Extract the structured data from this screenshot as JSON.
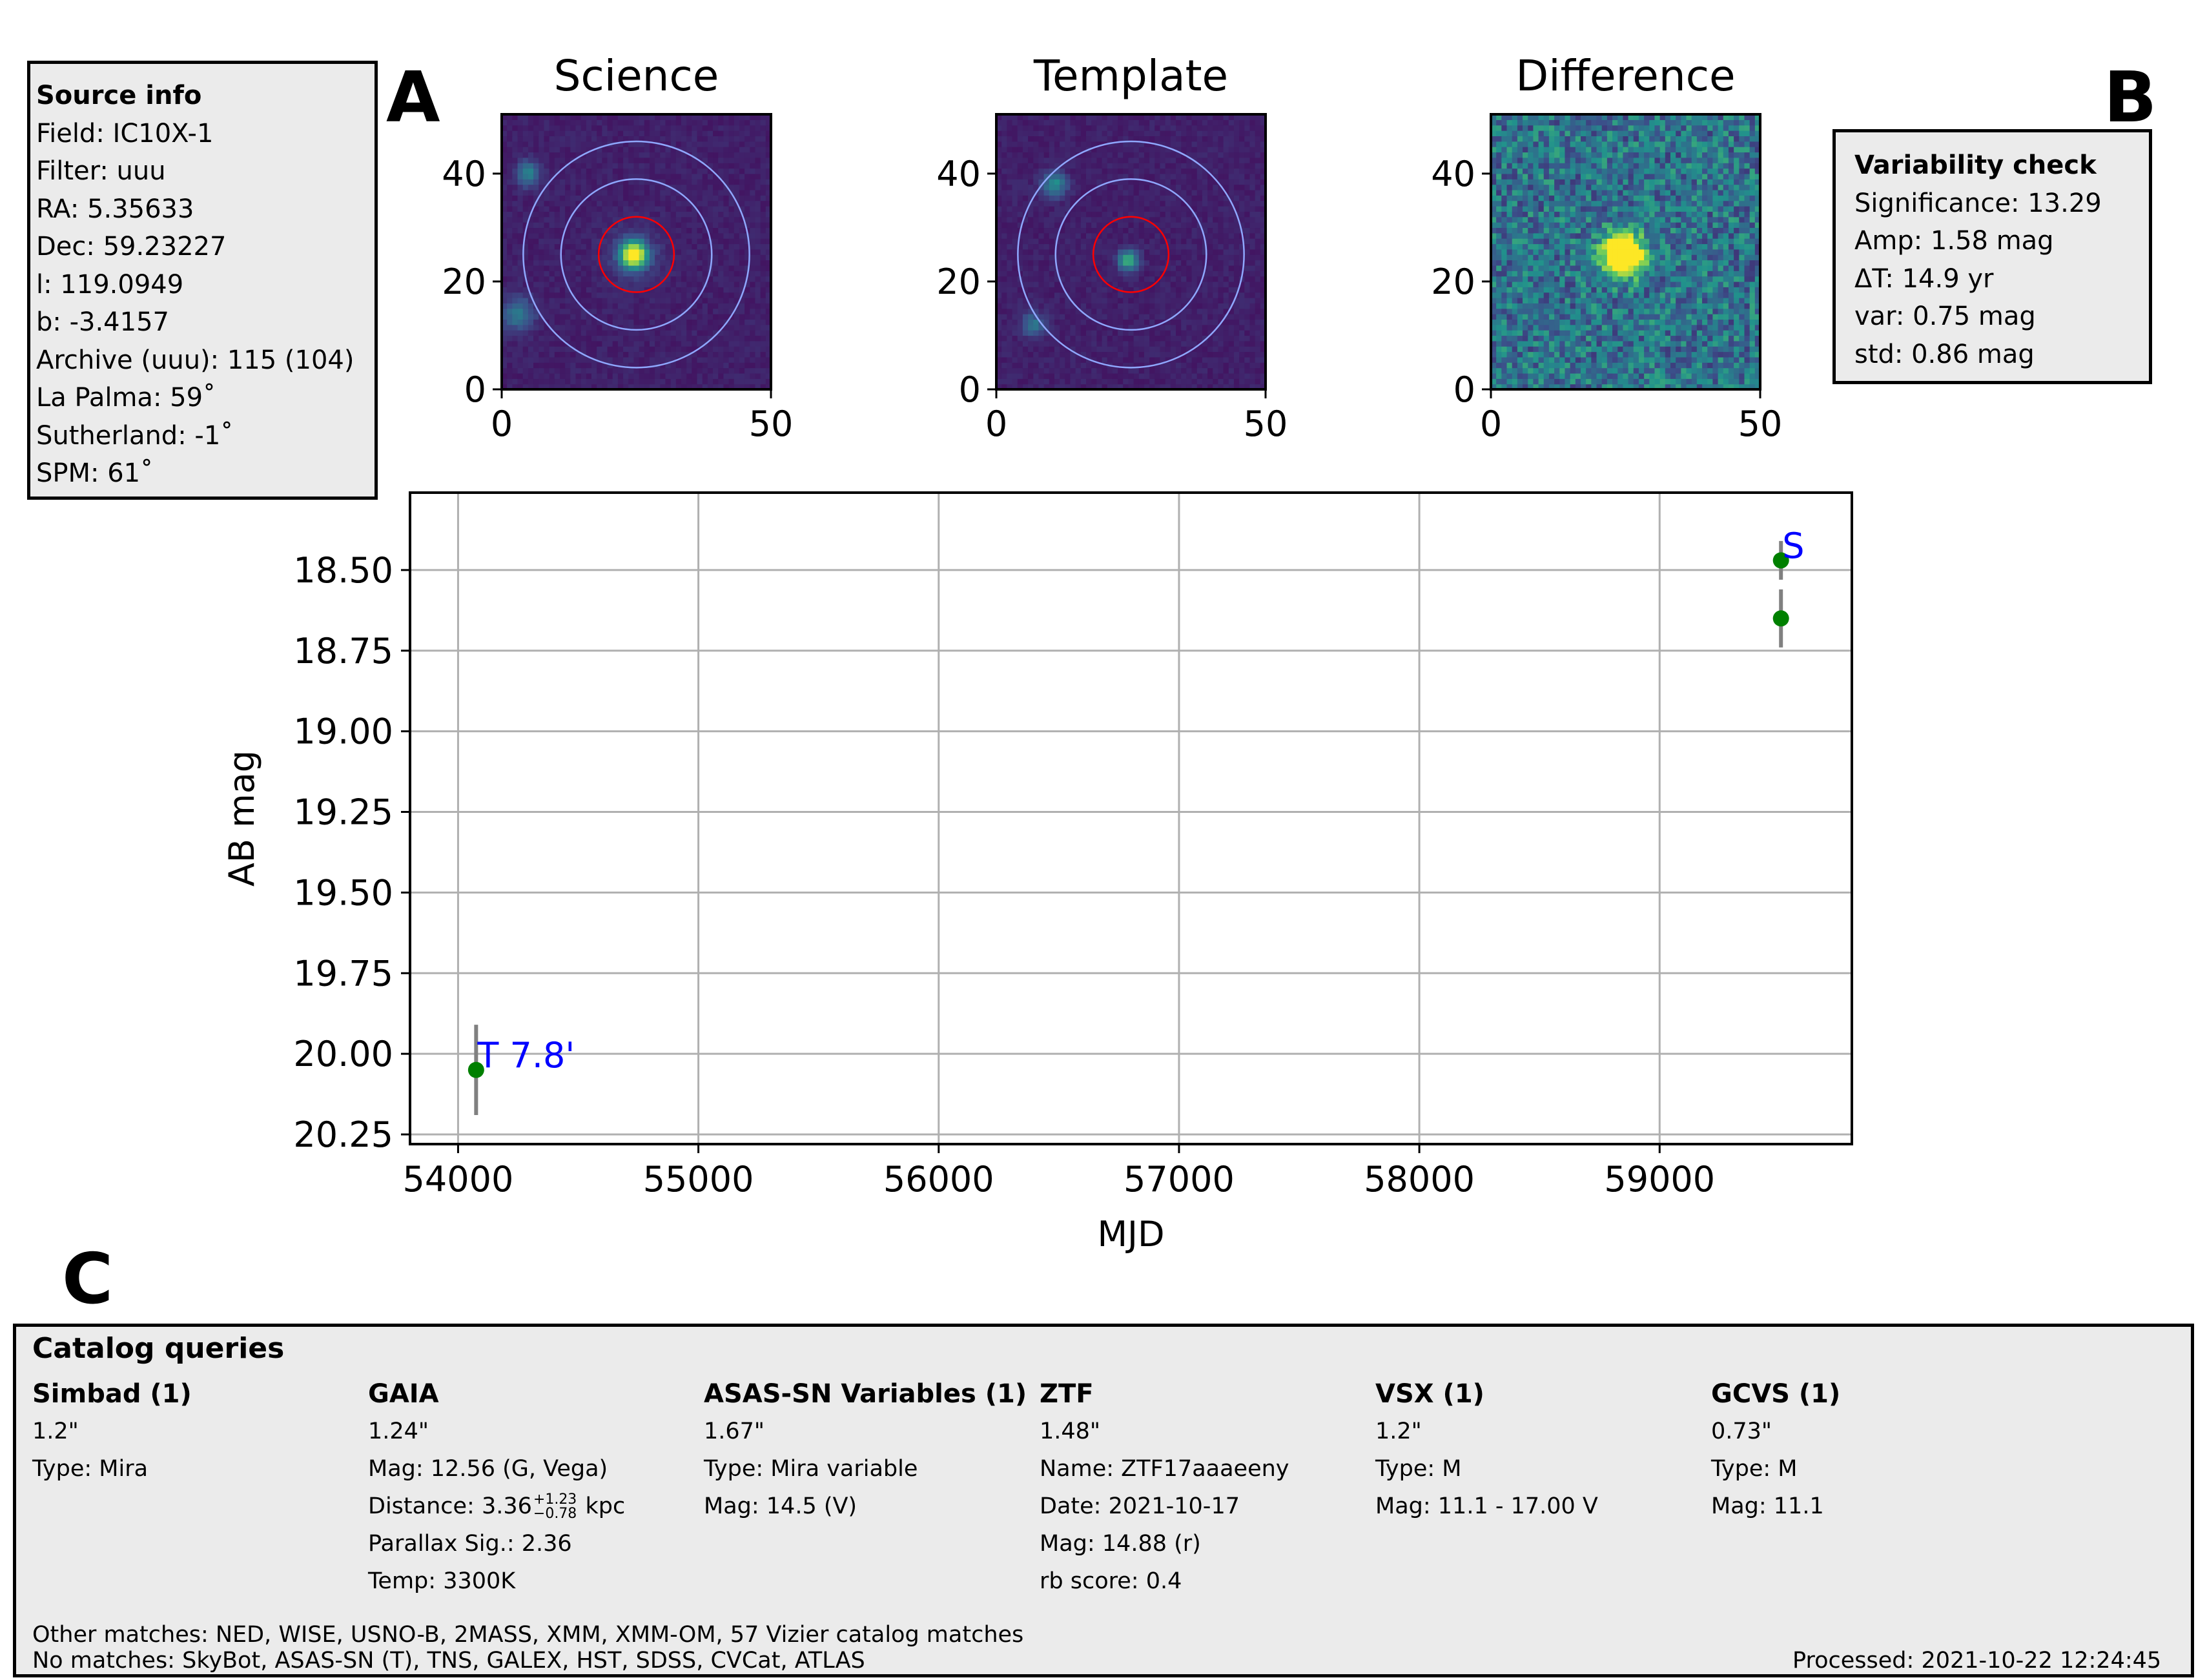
{
  "panels": {
    "a": "A",
    "b": "B",
    "c": "C"
  },
  "source_info": {
    "title": "Source info",
    "lines": [
      "Field: IC10X-1",
      "Filter: uuu",
      "RA: 5.35633",
      "Dec: 59.23227",
      "l: 119.0949",
      "b: -3.4157",
      "Archive (uuu): 115 (104)",
      "La Palma: 59˚",
      "Sutherland: -1˚",
      "SPM: 61˚"
    ]
  },
  "variability": {
    "title": "Variability check",
    "lines": [
      "Significance: 13.29",
      "Amp: 1.58 mag",
      "ΔT: 14.9 yr",
      "var: 0.75 mag",
      "std: 0.86 mag"
    ]
  },
  "stamps": [
    {
      "title": "Science",
      "kind": "science"
    },
    {
      "title": "Template",
      "kind": "template"
    },
    {
      "title": "Difference",
      "kind": "difference"
    }
  ],
  "stamp_axes": {
    "xticks": [
      "0",
      "50"
    ],
    "yticks": [
      "0",
      "20",
      "40"
    ]
  },
  "colors": {
    "point": "#008000",
    "errbar": "#808080",
    "label": "#0000ff",
    "aperture": "#ff0000",
    "annulus": "#8fa8ff",
    "grid": "#b0b0b0"
  },
  "chart_data": {
    "type": "scatter",
    "title": "",
    "xlabel": "MJD",
    "ylabel": "AB mag",
    "xlim": [
      53800,
      59800
    ],
    "ylim": [
      20.28,
      18.26
    ],
    "y_inverted": true,
    "xticks": [
      54000,
      55000,
      56000,
      57000,
      58000,
      59000
    ],
    "xtick_labels": [
      "54000",
      "55000",
      "56000",
      "57000",
      "58000",
      "59000"
    ],
    "yticks": [
      18.5,
      18.75,
      19.0,
      19.25,
      19.5,
      19.75,
      20.0,
      20.25
    ],
    "ytick_labels": [
      "18.50",
      "18.75",
      "19.00",
      "19.25",
      "19.50",
      "19.75",
      "20.00",
      "20.25"
    ],
    "grid": true,
    "points": [
      {
        "x": 54075,
        "y": 20.05,
        "err": 0.14,
        "label": "T 7.8'"
      },
      {
        "x": 59505,
        "y": 18.47,
        "err": 0.06,
        "label": "S"
      },
      {
        "x": 59505,
        "y": 18.65,
        "err": 0.09,
        "label": ""
      }
    ]
  },
  "catalog": {
    "title": "Catalog queries",
    "columns": [
      {
        "name": "Simbad (1)",
        "rows": [
          "1.2\"",
          "Type: Mira"
        ]
      },
      {
        "name": "GAIA",
        "rows": [
          "1.24\"",
          "Mag: 12.56 (G, Vega)",
          "Distance: 3.36",
          "Parallax Sig.: 2.36",
          "Temp: 3300K"
        ]
      },
      {
        "name": "ASAS-SN Variables (1)",
        "rows": [
          "1.67\"",
          "Type: Mira variable",
          "Mag: 14.5 (V)"
        ]
      },
      {
        "name": "ZTF",
        "rows": [
          "1.48\"",
          "Name: ZTF17aaaeeny",
          "Date: 2021-10-17",
          "Mag: 14.88 (r)",
          "rb score: 0.4"
        ]
      },
      {
        "name": "VSX (1)",
        "rows": [
          "1.2\"",
          "Type: M",
          "Mag: 11.1 - 17.00 V"
        ]
      },
      {
        "name": "GCVS (1)",
        "rows": [
          "0.73\"",
          "Type: M",
          "Mag: 11.1"
        ]
      }
    ],
    "distance_upper": "+1.23",
    "distance_lower": "−0.78",
    "distance_unit": "kpc",
    "other_matches": "Other matches: NED, WISE, USNO-B, 2MASS, XMM, XMM-OM, 57 Vizier catalog matches",
    "no_matches": "No matches: SkyBot, ASAS-SN (T), TNS, GALEX, HST, SDSS, CVCat, ATLAS",
    "processed": "Processed: 2021-10-22 12:24:45"
  }
}
